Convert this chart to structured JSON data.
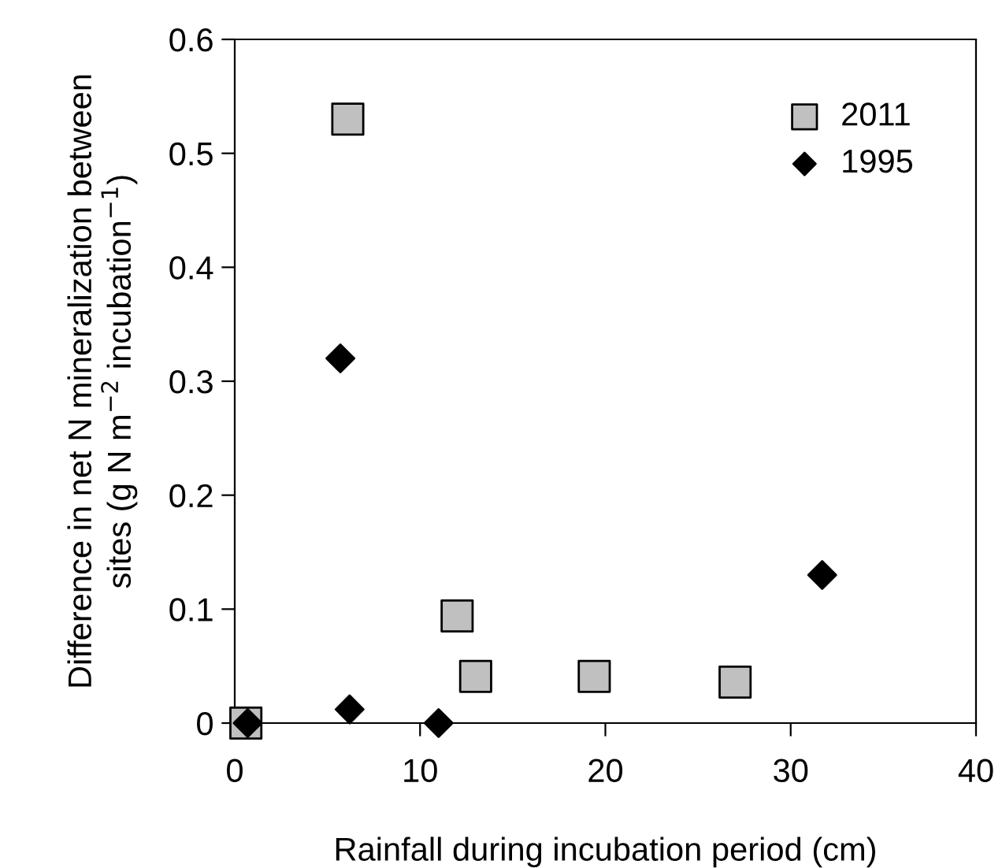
{
  "chart_data": {
    "type": "scatter",
    "xlabel": "Rainfall during incubation period (cm)",
    "ylabel": "Difference in net N mineralization between\nsites (g N m$^{−2}$ incubation$^{−1}$)",
    "series": [
      {
        "name": "2011",
        "color": "#c0c0c0",
        "marker": "square",
        "x": [
          0.6,
          6.1,
          12.0,
          13.0,
          19.4,
          27.0
        ],
        "values": [
          0,
          0.53,
          0.094,
          0.041,
          0.041,
          0.036
        ]
      },
      {
        "name": "1995",
        "color": "#000000",
        "marker": "diamond",
        "x": [
          0.7,
          5.7,
          6.2,
          11.0,
          31.7
        ],
        "values": [
          0,
          0.32,
          0.012,
          0,
          0.13
        ]
      }
    ],
    "xlim": [
      0,
      40
    ],
    "xticks": [
      0,
      10,
      20,
      30,
      40
    ],
    "ylim": [
      0,
      0.6
    ],
    "yticks": [
      0,
      0.1,
      0.2,
      0.3,
      0.4,
      0.5,
      0.6
    ],
    "grid": false,
    "legend": "top right"
  }
}
